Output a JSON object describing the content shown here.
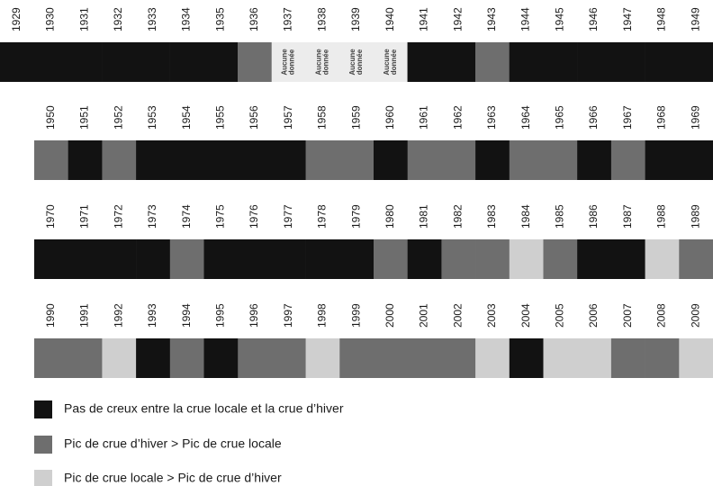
{
  "rows": [
    {
      "cells": [
        {
          "year": "1929",
          "color": "#121212"
        },
        {
          "year": "1930",
          "color": "#121212"
        },
        {
          "year": "1931",
          "color": "#121212"
        },
        {
          "year": "1932",
          "color": "#121212"
        },
        {
          "year": "1933",
          "color": "#121212"
        },
        {
          "year": "1934",
          "color": "#121212"
        },
        {
          "year": "1935",
          "color": "#121212"
        },
        {
          "year": "1936",
          "color": "#6e6e6e"
        },
        {
          "year": "1937",
          "color": "#ececec",
          "label": [
            "Aucune",
            "donnée"
          ]
        },
        {
          "year": "1938",
          "color": "#ececec",
          "label": [
            "Aucune",
            "donnée"
          ]
        },
        {
          "year": "1939",
          "color": "#ececec",
          "label": [
            "Aucune",
            "donnée"
          ]
        },
        {
          "year": "1940",
          "color": "#ececec",
          "label": [
            "Aucune",
            "donnée"
          ]
        },
        {
          "year": "1941",
          "color": "#121212"
        },
        {
          "year": "1942",
          "color": "#121212"
        },
        {
          "year": "1943",
          "color": "#6e6e6e"
        },
        {
          "year": "1944",
          "color": "#121212"
        },
        {
          "year": "1945",
          "color": "#121212"
        },
        {
          "year": "1946",
          "color": "#121212"
        },
        {
          "year": "1947",
          "color": "#121212"
        },
        {
          "year": "1948",
          "color": "#121212"
        },
        {
          "year": "1949",
          "color": "#121212"
        }
      ]
    },
    {
      "cells": [
        {
          "year": "1950",
          "color": "#6e6e6e"
        },
        {
          "year": "1951",
          "color": "#121212"
        },
        {
          "year": "1952",
          "color": "#6e6e6e"
        },
        {
          "year": "1953",
          "color": "#121212"
        },
        {
          "year": "1954",
          "color": "#121212"
        },
        {
          "year": "1955",
          "color": "#121212"
        },
        {
          "year": "1956",
          "color": "#121212"
        },
        {
          "year": "1957",
          "color": "#121212"
        },
        {
          "year": "1958",
          "color": "#6e6e6e"
        },
        {
          "year": "1959",
          "color": "#6e6e6e"
        },
        {
          "year": "1960",
          "color": "#121212"
        },
        {
          "year": "1961",
          "color": "#6e6e6e"
        },
        {
          "year": "1962",
          "color": "#6e6e6e"
        },
        {
          "year": "1963",
          "color": "#121212"
        },
        {
          "year": "1964",
          "color": "#6e6e6e"
        },
        {
          "year": "1965",
          "color": "#6e6e6e"
        },
        {
          "year": "1966",
          "color": "#121212"
        },
        {
          "year": "1967",
          "color": "#6e6e6e"
        },
        {
          "year": "1968",
          "color": "#121212"
        },
        {
          "year": "1969",
          "color": "#121212"
        }
      ]
    },
    {
      "cells": [
        {
          "year": "1970",
          "color": "#121212"
        },
        {
          "year": "1971",
          "color": "#121212"
        },
        {
          "year": "1972",
          "color": "#121212"
        },
        {
          "year": "1973",
          "color": "#121212"
        },
        {
          "year": "1974",
          "color": "#6e6e6e"
        },
        {
          "year": "1975",
          "color": "#121212"
        },
        {
          "year": "1976",
          "color": "#121212"
        },
        {
          "year": "1977",
          "color": "#121212"
        },
        {
          "year": "1978",
          "color": "#121212"
        },
        {
          "year": "1979",
          "color": "#121212"
        },
        {
          "year": "1980",
          "color": "#6e6e6e"
        },
        {
          "year": "1981",
          "color": "#121212"
        },
        {
          "year": "1982",
          "color": "#6e6e6e"
        },
        {
          "year": "1983",
          "color": "#6e6e6e"
        },
        {
          "year": "1984",
          "color": "#cfcfcf"
        },
        {
          "year": "1985",
          "color": "#6e6e6e"
        },
        {
          "year": "1986",
          "color": "#121212"
        },
        {
          "year": "1987",
          "color": "#121212"
        },
        {
          "year": "1988",
          "color": "#cfcfcf"
        },
        {
          "year": "1989",
          "color": "#6e6e6e"
        }
      ]
    },
    {
      "cells": [
        {
          "year": "1990",
          "color": "#6e6e6e"
        },
        {
          "year": "1991",
          "color": "#6e6e6e"
        },
        {
          "year": "1992",
          "color": "#cfcfcf"
        },
        {
          "year": "1993",
          "color": "#121212"
        },
        {
          "year": "1994",
          "color": "#6e6e6e"
        },
        {
          "year": "1995",
          "color": "#121212"
        },
        {
          "year": "1996",
          "color": "#6e6e6e"
        },
        {
          "year": "1997",
          "color": "#6e6e6e"
        },
        {
          "year": "1998",
          "color": "#cfcfcf"
        },
        {
          "year": "1999",
          "color": "#6e6e6e"
        },
        {
          "year": "2000",
          "color": "#6e6e6e"
        },
        {
          "year": "2001",
          "color": "#6e6e6e"
        },
        {
          "year": "2002",
          "color": "#6e6e6e"
        },
        {
          "year": "2003",
          "color": "#cfcfcf"
        },
        {
          "year": "2004",
          "color": "#121212"
        },
        {
          "year": "2005",
          "color": "#cfcfcf"
        },
        {
          "year": "2006",
          "color": "#cfcfcf"
        },
        {
          "year": "2007",
          "color": "#6e6e6e"
        },
        {
          "year": "2008",
          "color": "#6e6e6e"
        },
        {
          "year": "2009",
          "color": "#cfcfcf"
        }
      ]
    }
  ],
  "legend": [
    {
      "label": "Pas de creux entre la crue locale et la crue d’hiver",
      "color": "#121212"
    },
    {
      "label": "Pic de crue d’hiver > Pic de crue locale",
      "color": "#6e6e6e"
    },
    {
      "label": "Pic de crue locale > Pic de crue d’hiver",
      "color": "#cfcfcf"
    }
  ]
}
